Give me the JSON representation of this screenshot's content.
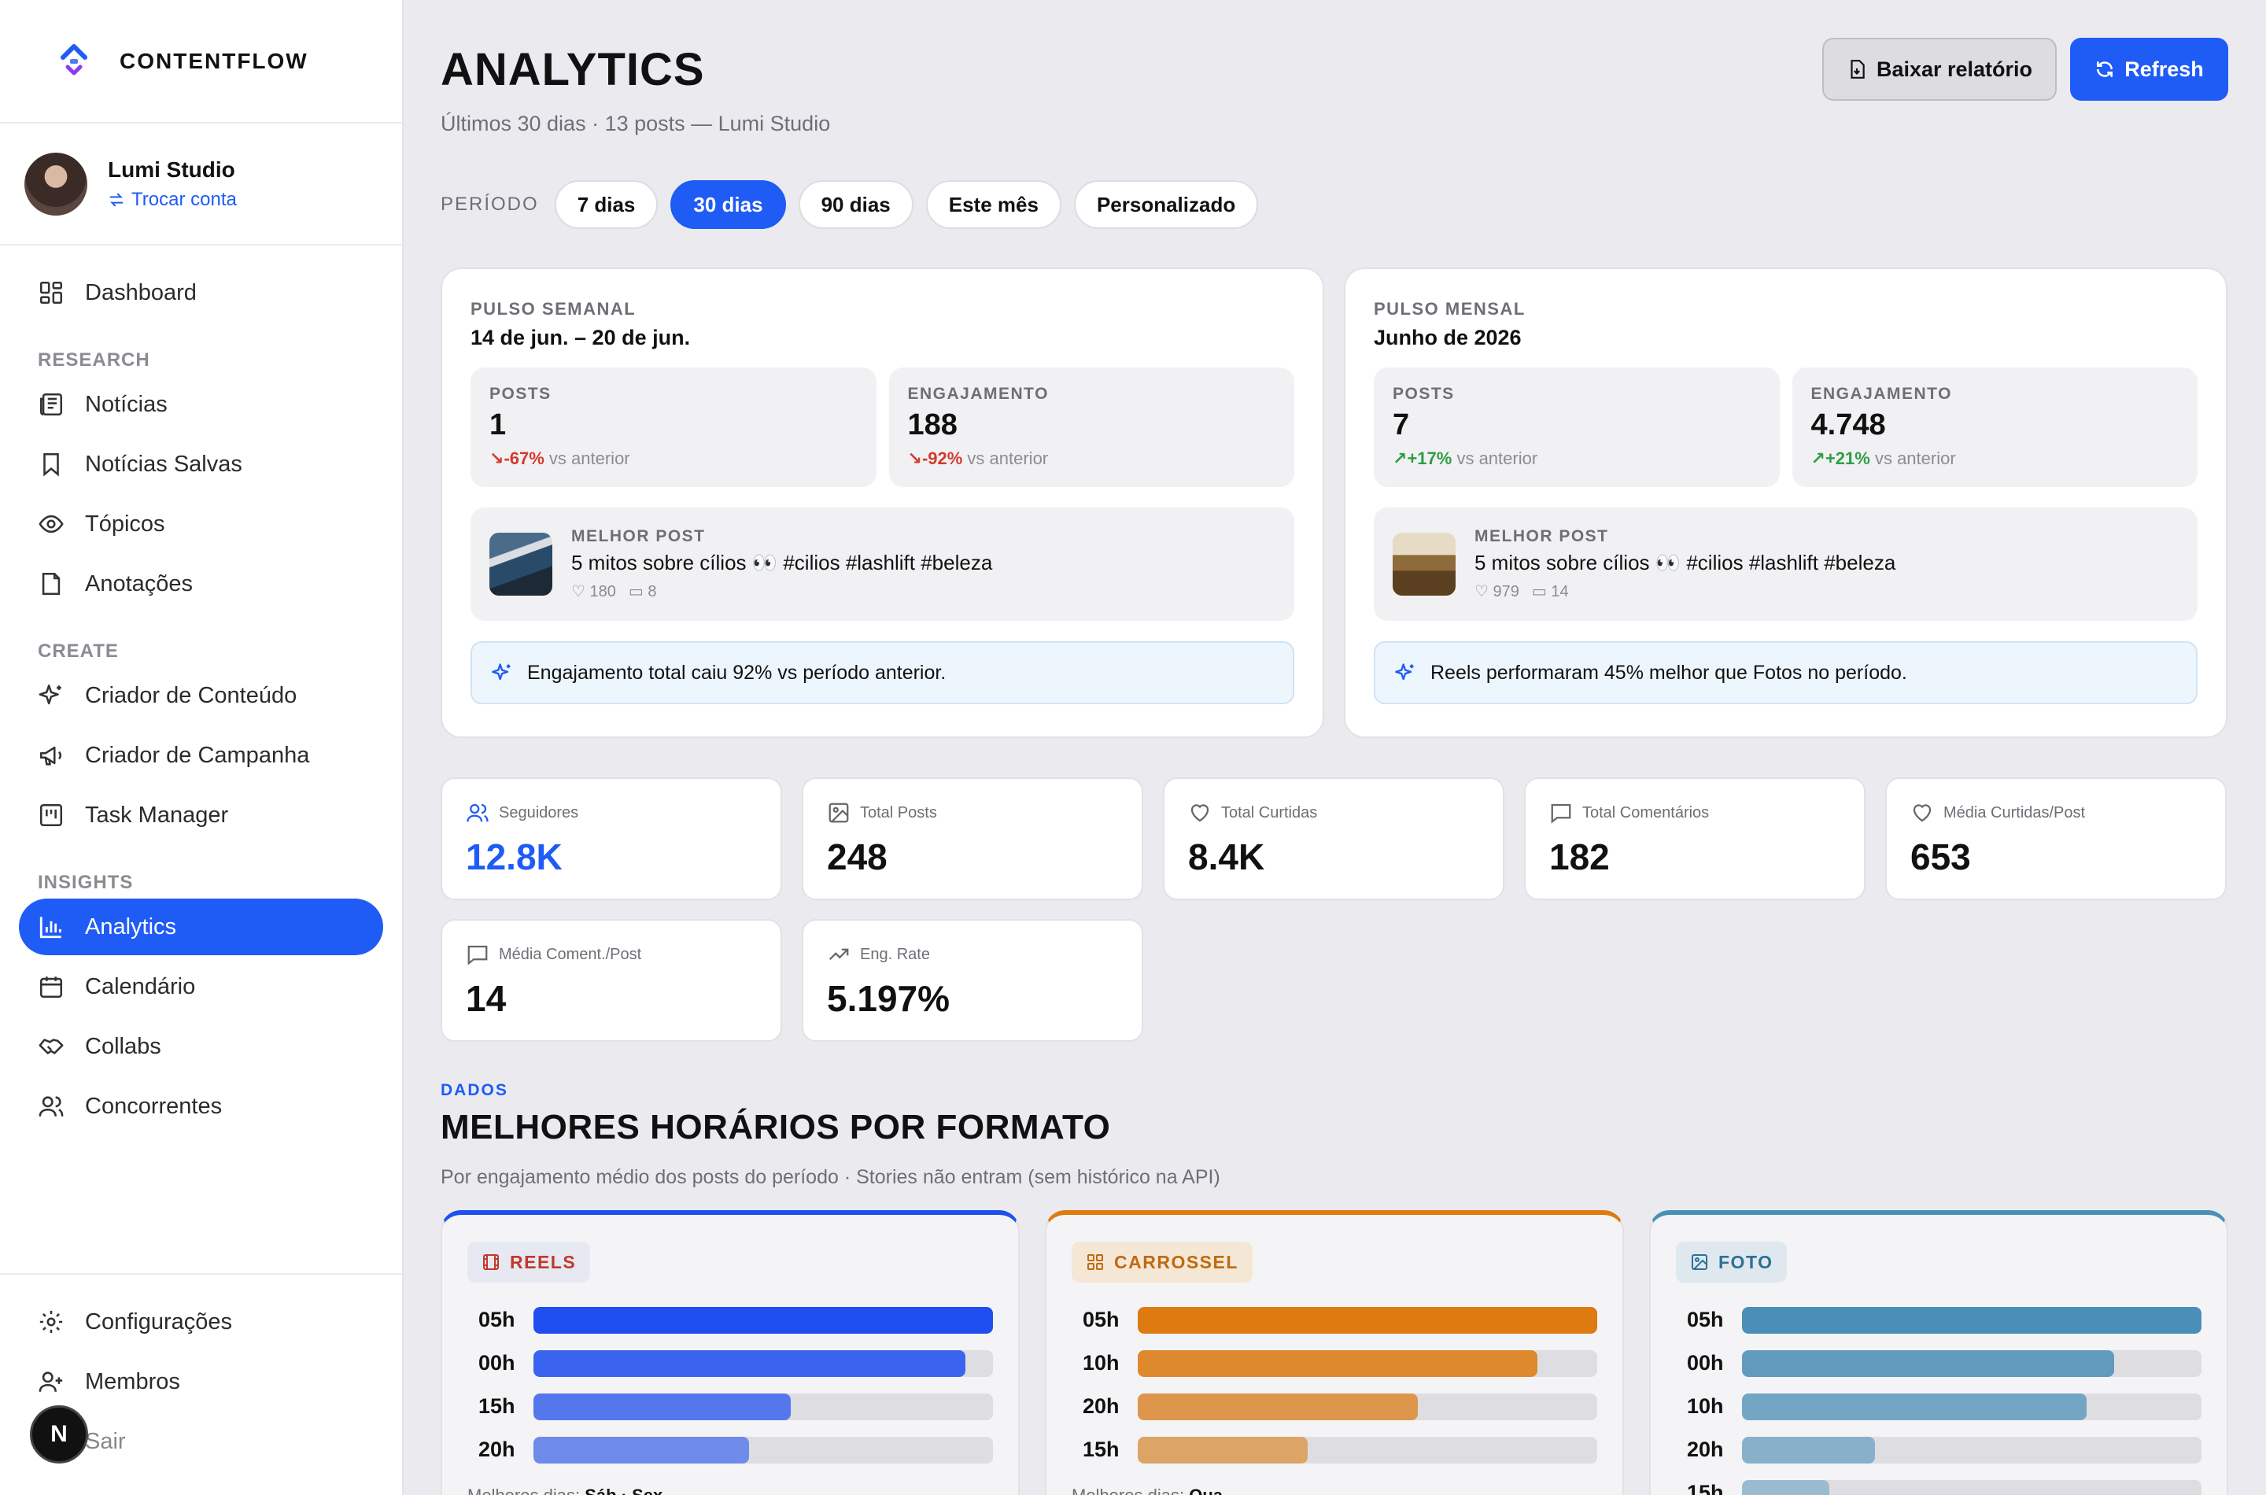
{
  "brand": {
    "name": "CONTENTFLOW"
  },
  "account": {
    "name": "Lumi Studio",
    "switch_label": "Trocar conta"
  },
  "nav": {
    "dashboard": "Dashboard",
    "research_label": "RESEARCH",
    "research": [
      "Notícias",
      "Notícias Salvas",
      "Tópicos",
      "Anotações"
    ],
    "create_label": "CREATE",
    "create": [
      "Criador de Conteúdo",
      "Criador de Campanha",
      "Task Manager"
    ],
    "insights_label": "INSIGHTS",
    "insights": [
      "Analytics",
      "Calendário",
      "Collabs",
      "Concorrentes"
    ],
    "bottom": [
      "Configurações",
      "Membros",
      "Sair"
    ],
    "active": "Analytics",
    "badge": "N"
  },
  "header": {
    "title": "ANALYTICS",
    "subtitle": "Últimos 30 dias · 13 posts — Lumi Studio",
    "report_button": "Baixar relatório",
    "refresh_button": "Refresh"
  },
  "period": {
    "label": "PERÍODO",
    "options": [
      "7 dias",
      "30 dias",
      "90 dias",
      "Este mês",
      "Personalizado"
    ],
    "selected": "30 dias"
  },
  "pulse_weekly": {
    "label": "PULSO SEMANAL",
    "range": "14 de jun. – 20 de jun.",
    "posts": {
      "label": "POSTS",
      "value": "1",
      "delta": "-67%",
      "delta_suffix": "vs anterior"
    },
    "engagement": {
      "label": "ENGAJAMENTO",
      "value": "188",
      "delta": "-92%",
      "delta_suffix": "vs anterior"
    },
    "best_post": {
      "label": "MELHOR POST",
      "title": "5 mitos sobre cílios 👀  #cilios #lashlift #beleza",
      "likes": "180",
      "comments": "8"
    },
    "insight": "Engajamento total caiu 92% vs período anterior."
  },
  "pulse_monthly": {
    "label": "PULSO MENSAL",
    "range": "Junho de 2026",
    "posts": {
      "label": "POSTS",
      "value": "7",
      "delta": "+17%",
      "delta_suffix": "vs anterior"
    },
    "engagement": {
      "label": "ENGAJAMENTO",
      "value": "4.748",
      "delta": "+21%",
      "delta_suffix": "vs anterior"
    },
    "best_post": {
      "label": "MELHOR POST",
      "title": "5 mitos sobre cílios 👀  #cilios #lashlift #beleza",
      "likes": "979",
      "comments": "14"
    },
    "insight": "Reels performaram 45% melhor que Fotos no período."
  },
  "kpis": [
    {
      "label": "Seguidores",
      "value": "12.8K",
      "icon": "users-icon"
    },
    {
      "label": "Total Posts",
      "value": "248",
      "icon": "image-icon"
    },
    {
      "label": "Total Curtidas",
      "value": "8.4K",
      "icon": "heart-icon"
    },
    {
      "label": "Total Comentários",
      "value": "182",
      "icon": "comment-icon"
    },
    {
      "label": "Média Curtidas/Post",
      "value": "653",
      "icon": "heart-icon"
    },
    {
      "label": "Média Coment./Post",
      "value": "14",
      "icon": "comment-icon"
    },
    {
      "label": "Eng. Rate",
      "value": "5.197%",
      "icon": "trend-up-icon"
    }
  ],
  "section": {
    "eyebrow": "DADOS",
    "title": "MELHORES HORÁRIOS POR FORMATO",
    "subtitle": "Por engajamento médio dos posts do período · Stories não entram (sem histórico na API)"
  },
  "formats": [
    {
      "name": "REELS",
      "accent": "#1f4ff0",
      "badge_bg": "#e7e9f2",
      "badge_color": "#c0392b",
      "rows": [
        {
          "label": "05h",
          "level": 1.0
        },
        {
          "label": "00h",
          "level": 0.94
        },
        {
          "label": "15h",
          "level": 0.56
        },
        {
          "label": "20h",
          "level": 0.47
        }
      ],
      "best_days_label": "Melhores dias:",
      "best_days": "Sáb · Sex"
    },
    {
      "name": "CARROSSEL",
      "accent": "#dd7a10",
      "badge_bg": "#f4e7d6",
      "badge_color": "#c06a10",
      "rows": [
        {
          "label": "05h",
          "level": 1.0
        },
        {
          "label": "10h",
          "level": 0.87
        },
        {
          "label": "20h",
          "level": 0.61
        },
        {
          "label": "15h",
          "level": 0.37
        }
      ],
      "best_days_label": "Melhores dias:",
      "best_days": "Qua"
    },
    {
      "name": "FOTO",
      "accent": "#4a8fb8",
      "badge_bg": "#dfe8ef",
      "badge_color": "#2f6f98",
      "rows": [
        {
          "label": "05h",
          "level": 1.0
        },
        {
          "label": "00h",
          "level": 0.81
        },
        {
          "label": "10h",
          "level": 0.75
        },
        {
          "label": "20h",
          "level": 0.29
        },
        {
          "label": "15h",
          "level": 0.19
        }
      ],
      "best_days_label": "",
      "best_days": ""
    }
  ]
}
